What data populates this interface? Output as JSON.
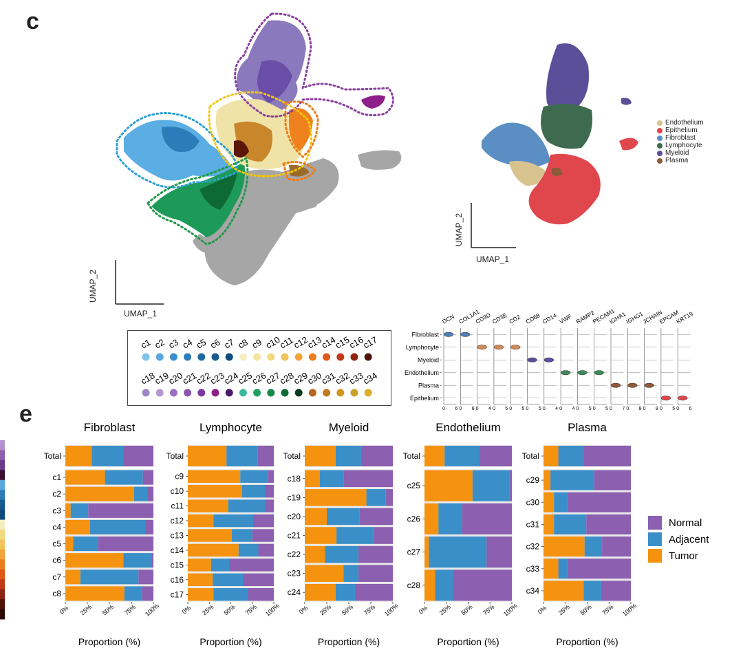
{
  "panel_labels": {
    "umap": "c",
    "bars": "e"
  },
  "umap_left": {
    "xlabel": "UMAP_1",
    "ylabel": "UMAP_2"
  },
  "umap_right": {
    "xlabel": "UMAP_1",
    "ylabel": "UMAP_2",
    "legend": [
      {
        "label": "Endothelium",
        "color": "#d8c38f"
      },
      {
        "label": "Epithelium",
        "color": "#e0474c"
      },
      {
        "label": "Fibroblast",
        "color": "#5b8fc4"
      },
      {
        "label": "Lymphocyte",
        "color": "#3e6b4f"
      },
      {
        "label": "Myeloid",
        "color": "#5b4f9a"
      },
      {
        "label": "Plasma",
        "color": "#8e5a3a"
      }
    ]
  },
  "cluster_legend": {
    "row1": [
      {
        "label": "c1",
        "color": "#7ec3ea"
      },
      {
        "label": "c2",
        "color": "#5aa8de"
      },
      {
        "label": "c3",
        "color": "#3a8fcf"
      },
      {
        "label": "c4",
        "color": "#2b7cb8"
      },
      {
        "label": "c5",
        "color": "#1f6aa3"
      },
      {
        "label": "c6",
        "color": "#165a8e"
      },
      {
        "label": "c7",
        "color": "#0e4a7a"
      },
      {
        "label": "c8",
        "color": "#f4efc2"
      },
      {
        "label": "c9",
        "color": "#f2e7a2"
      },
      {
        "label": "c10",
        "color": "#f1d97e"
      },
      {
        "label": "c11",
        "color": "#f1c35c"
      },
      {
        "label": "c12",
        "color": "#f0a43a"
      },
      {
        "label": "c13",
        "color": "#ec7e1f"
      },
      {
        "label": "c14",
        "color": "#e0571a"
      },
      {
        "label": "c15",
        "color": "#c0391a"
      },
      {
        "label": "c16",
        "color": "#8e2314"
      },
      {
        "label": "c17",
        "color": "#4e1208"
      }
    ],
    "row2": [
      {
        "label": "c18",
        "color": "#9a86c4"
      },
      {
        "label": "c19",
        "color": "#b398d0"
      },
      {
        "label": "c20",
        "color": "#9b72bf"
      },
      {
        "label": "c21",
        "color": "#8d55b0"
      },
      {
        "label": "c22",
        "color": "#7a3aa0"
      },
      {
        "label": "c23",
        "color": "#8e1f8a"
      },
      {
        "label": "c24",
        "color": "#4b1a6a"
      },
      {
        "label": "c25",
        "color": "#3cb89a"
      },
      {
        "label": "c26",
        "color": "#20a060"
      },
      {
        "label": "c27",
        "color": "#168a48"
      },
      {
        "label": "c28",
        "color": "#0e6a34"
      },
      {
        "label": "c29",
        "color": "#0a3a1c"
      },
      {
        "label": "c30",
        "color": "#b5651d"
      },
      {
        "label": "c31",
        "color": "#c47a1c"
      },
      {
        "label": "c32",
        "color": "#d4951e"
      },
      {
        "label": "c33",
        "color": "#c9a227"
      },
      {
        "label": "c34",
        "color": "#d8b02a"
      }
    ]
  },
  "violin": {
    "genes": [
      "DCN",
      "COL1A1",
      "CD3D",
      "CD3E",
      "CD2",
      "CD68",
      "CD14",
      "VWF",
      "RAMP2",
      "PECAM1",
      "IGHA1",
      "IGHG1",
      "JCHAIN",
      "EPCAM",
      "KRT19"
    ],
    "cell_types": [
      "Fibroblast",
      "Lymphocyte",
      "Myeloid",
      "Endothelium",
      "Plasma",
      "Epithelium"
    ],
    "axis_ticks": [
      [
        "0",
        "6"
      ],
      [
        "0",
        "6"
      ],
      [
        "0",
        "4"
      ],
      [
        "0",
        "5"
      ],
      [
        "0",
        "5"
      ],
      [
        "0",
        "5"
      ],
      [
        "0",
        "4"
      ],
      [
        "0",
        "4"
      ],
      [
        "0",
        "5"
      ],
      [
        "0",
        "5"
      ],
      [
        "0",
        "7"
      ],
      [
        "0",
        "8"
      ],
      [
        "0",
        "8"
      ],
      [
        "0",
        "5"
      ],
      [
        "0",
        "6"
      ]
    ],
    "expressed": [
      [
        0,
        0
      ],
      [
        1,
        0
      ],
      [
        2,
        1
      ],
      [
        3,
        1
      ],
      [
        4,
        1
      ],
      [
        5,
        2
      ],
      [
        6,
        2
      ],
      [
        7,
        3
      ],
      [
        8,
        3
      ],
      [
        9,
        3
      ],
      [
        10,
        4
      ],
      [
        11,
        4
      ],
      [
        12,
        4
      ],
      [
        13,
        5
      ],
      [
        14,
        5
      ]
    ],
    "colors": [
      "#4f7fb5",
      "#4f7fb5",
      "#d08a58",
      "#d08a58",
      "#d08a58",
      "#5b4f9a",
      "#5b4f9a",
      "#3e8a5a",
      "#3e8a5a",
      "#3e8a5a",
      "#8e5a3a",
      "#8e5a3a",
      "#8e5a3a",
      "#e0474c",
      "#e0474c"
    ]
  },
  "chart_data": [
    {
      "type": "bar",
      "title": "Fibroblast",
      "xlabel": "Proportion (%)",
      "ylabel": "",
      "categories": [
        "Total",
        "c1",
        "c2",
        "c3",
        "c4",
        "c5",
        "c6",
        "c7",
        "c8"
      ],
      "series": [
        {
          "name": "Tumor",
          "values": [
            30,
            45,
            78,
            6,
            28,
            9,
            66,
            17,
            67
          ]
        },
        {
          "name": "Adjacent",
          "values": [
            36,
            43,
            15,
            20,
            63,
            28,
            32,
            66,
            20
          ]
        },
        {
          "name": "Normal",
          "values": [
            34,
            12,
            7,
            74,
            9,
            63,
            2,
            17,
            13
          ]
        }
      ],
      "xlim": [
        0,
        100
      ]
    },
    {
      "type": "bar",
      "title": "Lymphocyte",
      "xlabel": "Proportion (%)",
      "ylabel": "",
      "categories": [
        "Total",
        "c9",
        "c10",
        "c11",
        "c12",
        "c13",
        "c14",
        "c15",
        "c16",
        "c17"
      ],
      "series": [
        {
          "name": "Tumor",
          "values": [
            45,
            61,
            63,
            47,
            30,
            51,
            59,
            27,
            29,
            30
          ]
        },
        {
          "name": "Adjacent",
          "values": [
            36,
            32,
            27,
            43,
            46,
            24,
            23,
            21,
            35,
            40
          ]
        },
        {
          "name": "Normal",
          "values": [
            19,
            7,
            10,
            10,
            24,
            25,
            18,
            52,
            36,
            30
          ]
        }
      ],
      "xlim": [
        0,
        100
      ]
    },
    {
      "type": "bar",
      "title": "Myeloid",
      "xlabel": "Proportion (%)",
      "ylabel": "",
      "categories": [
        "Total",
        "c18",
        "c19",
        "c20",
        "c21",
        "c22",
        "c23",
        "c24"
      ],
      "series": [
        {
          "name": "Tumor",
          "values": [
            35,
            17,
            70,
            25,
            36,
            23,
            44,
            35
          ]
        },
        {
          "name": "Adjacent",
          "values": [
            29,
            27,
            22,
            37,
            42,
            38,
            17,
            22
          ]
        },
        {
          "name": "Normal",
          "values": [
            36,
            56,
            8,
            38,
            22,
            39,
            39,
            43
          ]
        }
      ],
      "xlim": [
        0,
        100
      ]
    },
    {
      "type": "bar",
      "title": "Endothelium",
      "xlabel": "Proportion (%)",
      "ylabel": "",
      "categories": [
        "Total",
        "c25",
        "c26",
        "c27",
        "c28"
      ],
      "series": [
        {
          "name": "Tumor",
          "values": [
            23,
            55,
            16,
            5,
            12
          ]
        },
        {
          "name": "Adjacent",
          "values": [
            40,
            42,
            27,
            66,
            21
          ]
        },
        {
          "name": "Normal",
          "values": [
            37,
            3,
            57,
            29,
            67
          ]
        }
      ],
      "xlim": [
        0,
        100
      ]
    },
    {
      "type": "bar",
      "title": "Plasma",
      "xlabel": "Proportion (%)",
      "ylabel": "",
      "categories": [
        "Total",
        "c29",
        "c30",
        "c31",
        "c32",
        "c33",
        "c34"
      ],
      "series": [
        {
          "name": "Tumor",
          "values": [
            17,
            8,
            12,
            12,
            47,
            17,
            46
          ]
        },
        {
          "name": "Adjacent",
          "values": [
            28,
            50,
            15,
            37,
            20,
            10,
            20
          ]
        },
        {
          "name": "Normal",
          "values": [
            55,
            42,
            73,
            51,
            33,
            73,
            34
          ]
        }
      ],
      "xlim": [
        0,
        100
      ]
    }
  ],
  "bar_ticks": [
    "0%",
    "25%",
    "50%",
    "75%",
    "100%"
  ],
  "bar_legend": [
    {
      "label": "Normal",
      "color": "#8c5fb0"
    },
    {
      "label": "Adjacent",
      "color": "#3a8fc8"
    },
    {
      "label": "Tumor",
      "color": "#f59210"
    }
  ],
  "colors": {
    "Tumor": "#f59210",
    "Adjacent": "#3a8fc8",
    "Normal": "#8c5fb0"
  },
  "left_strip_colors": [
    "#b391cf",
    "#8c5fb0",
    "#6a3e8e",
    "#3b1030",
    "#5aa8de",
    "#2b7cb8",
    "#165a8e",
    "#0e4a7a",
    "#f4efc2",
    "#f1d97e",
    "#f1c35c",
    "#f0a43a",
    "#ec7e1f",
    "#e0571a",
    "#c0391a",
    "#8e2314",
    "#4e1208",
    "#2b0c05"
  ]
}
